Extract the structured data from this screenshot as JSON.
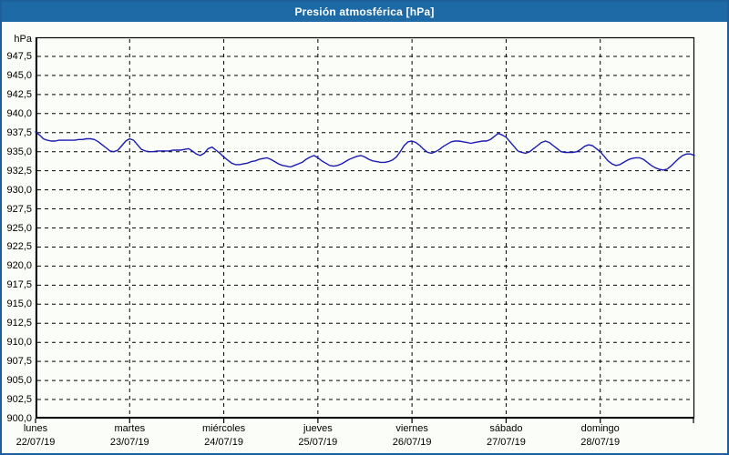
{
  "window": {
    "title": "Presión atmosférica [hPa]",
    "title_bg": "#1e6aa7",
    "border_color": "#1d5f98",
    "background": "#fbfdf9"
  },
  "chart_data": {
    "type": "line",
    "title": "Presión atmosférica [hPa]",
    "ylabel": "hPa",
    "grid": "dashed",
    "line_color": "#1b1bb0",
    "grid_color": "#000000",
    "y_axis": {
      "min": 900,
      "max": 950,
      "tick_step": 2.5,
      "unit_label": "hPa",
      "ticks": [
        {
          "v": 947.5,
          "label": "947,5"
        },
        {
          "v": 945.0,
          "label": "945,0"
        },
        {
          "v": 942.5,
          "label": "942,5"
        },
        {
          "v": 940.0,
          "label": "940,0"
        },
        {
          "v": 937.5,
          "label": "937,5"
        },
        {
          "v": 935.0,
          "label": "935,0"
        },
        {
          "v": 932.5,
          "label": "932,5"
        },
        {
          "v": 930.0,
          "label": "930,0"
        },
        {
          "v": 927.5,
          "label": "927,5"
        },
        {
          "v": 925.0,
          "label": "925,0"
        },
        {
          "v": 922.5,
          "label": "922,5"
        },
        {
          "v": 920.0,
          "label": "920,0"
        },
        {
          "v": 917.5,
          "label": "917,5"
        },
        {
          "v": 915.0,
          "label": "915,0"
        },
        {
          "v": 912.5,
          "label": "912,5"
        },
        {
          "v": 910.0,
          "label": "910,0"
        },
        {
          "v": 907.5,
          "label": "907,5"
        },
        {
          "v": 905.0,
          "label": "905,0"
        },
        {
          "v": 902.5,
          "label": "902,5"
        },
        {
          "v": 900.0,
          "label": "900,0"
        }
      ]
    },
    "x_axis": {
      "hours_total": 168,
      "days": [
        {
          "name": "lunes",
          "date": "22/07/19"
        },
        {
          "name": "martes",
          "date": "23/07/19"
        },
        {
          "name": "miércoles",
          "date": "24/07/19"
        },
        {
          "name": "jueves",
          "date": "25/07/19"
        },
        {
          "name": "viernes",
          "date": "26/07/19"
        },
        {
          "name": "sábado",
          "date": "27/07/19"
        },
        {
          "name": "domingo",
          "date": "28/07/19"
        }
      ]
    },
    "series": [
      {
        "name": "Presión atmosférica",
        "unit": "hPa",
        "points": [
          [
            0,
            937.6
          ],
          [
            1,
            937.2
          ],
          [
            2,
            936.7
          ],
          [
            3,
            936.5
          ],
          [
            4,
            936.4
          ],
          [
            5,
            936.4
          ],
          [
            6,
            936.5
          ],
          [
            7,
            936.5
          ],
          [
            8,
            936.5
          ],
          [
            9,
            936.5
          ],
          [
            10,
            936.5
          ],
          [
            11,
            936.6
          ],
          [
            12,
            936.6
          ],
          [
            13,
            936.7
          ],
          [
            14,
            936.7
          ],
          [
            15,
            936.6
          ],
          [
            16,
            936.3
          ],
          [
            17,
            935.9
          ],
          [
            18,
            935.5
          ],
          [
            19,
            935.1
          ],
          [
            20,
            935.0
          ],
          [
            21,
            935.2
          ],
          [
            22,
            935.8
          ],
          [
            23,
            936.4
          ],
          [
            24,
            936.7
          ],
          [
            25,
            936.5
          ],
          [
            26,
            935.9
          ],
          [
            27,
            935.3
          ],
          [
            28,
            935.1
          ],
          [
            29,
            935.0
          ],
          [
            30,
            935.0
          ],
          [
            31,
            935.1
          ],
          [
            32,
            935.1
          ],
          [
            33,
            935.1
          ],
          [
            34,
            935.1
          ],
          [
            35,
            935.2
          ],
          [
            36,
            935.2
          ],
          [
            37,
            935.2
          ],
          [
            38,
            935.3
          ],
          [
            39,
            935.4
          ],
          [
            40,
            935.1
          ],
          [
            41,
            934.7
          ],
          [
            42,
            934.5
          ],
          [
            43,
            934.8
          ],
          [
            44,
            935.4
          ],
          [
            45,
            935.6
          ],
          [
            46,
            935.2
          ],
          [
            47,
            934.8
          ],
          [
            48,
            934.3
          ],
          [
            49,
            933.9
          ],
          [
            50,
            933.5
          ],
          [
            51,
            933.3
          ],
          [
            52,
            933.3
          ],
          [
            53,
            933.4
          ],
          [
            54,
            933.5
          ],
          [
            55,
            933.7
          ],
          [
            56,
            933.8
          ],
          [
            57,
            934.0
          ],
          [
            58,
            934.1
          ],
          [
            59,
            934.2
          ],
          [
            60,
            934.0
          ],
          [
            61,
            933.7
          ],
          [
            62,
            933.4
          ],
          [
            63,
            933.2
          ],
          [
            64,
            933.1
          ],
          [
            65,
            933.0
          ],
          [
            66,
            933.2
          ],
          [
            67,
            933.4
          ],
          [
            68,
            933.6
          ],
          [
            69,
            934.0
          ],
          [
            70,
            934.3
          ],
          [
            71,
            934.5
          ],
          [
            72,
            934.2
          ],
          [
            73,
            933.8
          ],
          [
            74,
            933.5
          ],
          [
            75,
            933.2
          ],
          [
            76,
            933.1
          ],
          [
            77,
            933.2
          ],
          [
            78,
            933.4
          ],
          [
            79,
            933.7
          ],
          [
            80,
            934.0
          ],
          [
            81,
            934.2
          ],
          [
            82,
            934.4
          ],
          [
            83,
            934.5
          ],
          [
            84,
            934.3
          ],
          [
            85,
            934.0
          ],
          [
            86,
            933.8
          ],
          [
            87,
            933.7
          ],
          [
            88,
            933.6
          ],
          [
            89,
            933.6
          ],
          [
            90,
            933.7
          ],
          [
            91,
            933.9
          ],
          [
            92,
            934.3
          ],
          [
            93,
            935.0
          ],
          [
            94,
            935.8
          ],
          [
            95,
            936.3
          ],
          [
            96,
            936.4
          ],
          [
            97,
            936.2
          ],
          [
            98,
            935.8
          ],
          [
            99,
            935.3
          ],
          [
            100,
            934.9
          ],
          [
            101,
            934.8
          ],
          [
            102,
            935.0
          ],
          [
            103,
            935.3
          ],
          [
            104,
            935.7
          ],
          [
            105,
            936.0
          ],
          [
            106,
            936.3
          ],
          [
            107,
            936.4
          ],
          [
            108,
            936.4
          ],
          [
            109,
            936.3
          ],
          [
            110,
            936.2
          ],
          [
            111,
            936.1
          ],
          [
            112,
            936.2
          ],
          [
            113,
            936.3
          ],
          [
            114,
            936.4
          ],
          [
            115,
            936.4
          ],
          [
            116,
            936.6
          ],
          [
            117,
            937.0
          ],
          [
            118,
            937.4
          ],
          [
            119,
            937.2
          ],
          [
            120,
            936.9
          ],
          [
            121,
            936.3
          ],
          [
            122,
            935.7
          ],
          [
            123,
            935.1
          ],
          [
            124,
            934.9
          ],
          [
            125,
            934.8
          ],
          [
            126,
            935.0
          ],
          [
            127,
            935.4
          ],
          [
            128,
            935.8
          ],
          [
            129,
            936.2
          ],
          [
            130,
            936.4
          ],
          [
            131,
            936.2
          ],
          [
            132,
            935.8
          ],
          [
            133,
            935.4
          ],
          [
            134,
            935.0
          ],
          [
            135,
            934.9
          ],
          [
            136,
            934.9
          ],
          [
            137,
            934.9
          ],
          [
            138,
            935.0
          ],
          [
            139,
            935.3
          ],
          [
            140,
            935.7
          ],
          [
            141,
            935.9
          ],
          [
            142,
            935.8
          ],
          [
            143,
            935.4
          ],
          [
            144,
            935.0
          ],
          [
            145,
            934.4
          ],
          [
            146,
            933.8
          ],
          [
            147,
            933.4
          ],
          [
            148,
            933.2
          ],
          [
            149,
            933.3
          ],
          [
            150,
            933.6
          ],
          [
            151,
            933.9
          ],
          [
            152,
            934.1
          ],
          [
            153,
            934.2
          ],
          [
            154,
            934.2
          ],
          [
            155,
            934.0
          ],
          [
            156,
            933.6
          ],
          [
            157,
            933.2
          ],
          [
            158,
            932.9
          ],
          [
            159,
            932.7
          ],
          [
            160,
            932.6
          ],
          [
            161,
            932.7
          ],
          [
            162,
            933.1
          ],
          [
            163,
            933.6
          ],
          [
            164,
            934.1
          ],
          [
            165,
            934.5
          ],
          [
            166,
            934.7
          ],
          [
            167,
            934.7
          ],
          [
            168,
            934.5
          ]
        ]
      }
    ]
  }
}
